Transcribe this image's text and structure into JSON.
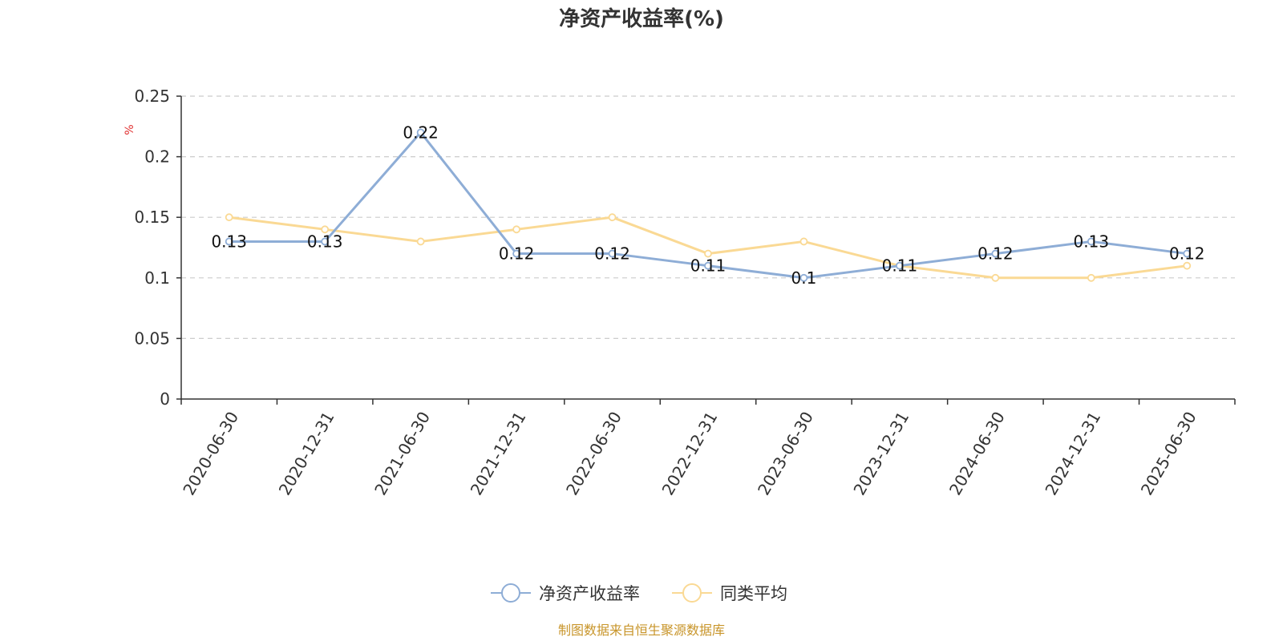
{
  "chart_data": {
    "type": "line",
    "title": "净资产收益率(%)",
    "ylabel": "%",
    "xlabel": "",
    "ylim": [
      0,
      0.25
    ],
    "yticks": [
      "0",
      "0.05",
      "0.1",
      "0.15",
      "0.2",
      "0.25"
    ],
    "grid": true,
    "legend_position": "bottom",
    "categories": [
      "2020-06-30",
      "2020-12-31",
      "2021-06-30",
      "2021-12-31",
      "2022-06-30",
      "2022-12-31",
      "2023-06-30",
      "2023-12-31",
      "2024-06-30",
      "2024-12-31",
      "2025-06-30"
    ],
    "series": [
      {
        "name": "净资产收益率",
        "color": "#8eadd6",
        "values": [
          0.13,
          0.13,
          0.22,
          0.12,
          0.12,
          0.11,
          0.1,
          0.11,
          0.12,
          0.13,
          0.12
        ],
        "labels": [
          "0.13",
          "0.13",
          "0.22",
          "0.12",
          "0.12",
          "0.11",
          "0.1",
          "0.11",
          "0.12",
          "0.13",
          "0.12"
        ]
      },
      {
        "name": "同类平均",
        "color": "#fad994",
        "values": [
          0.15,
          0.14,
          0.13,
          0.14,
          0.15,
          0.12,
          0.13,
          0.11,
          0.1,
          0.1,
          0.11
        ]
      }
    ]
  },
  "source_note": "制图数据来自恒生聚源数据库",
  "colors": {
    "unit_label": "#e03030",
    "source_note": "#c8952a",
    "axis": "#333333",
    "grid": "#cccccc"
  }
}
